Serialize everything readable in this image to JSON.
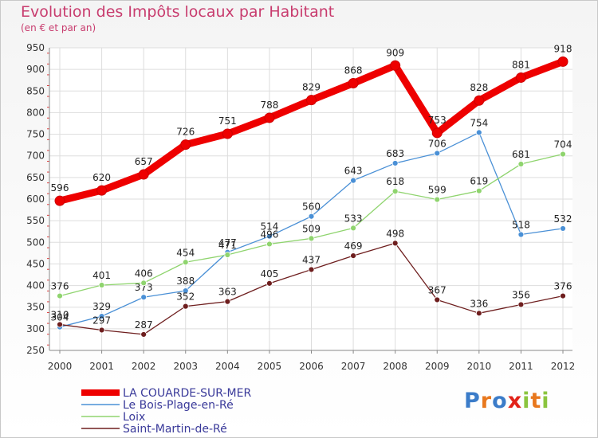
{
  "title": "Evolution des Impôts locaux par Habitant",
  "subtitle": "(en € et par an)",
  "brand": {
    "name": "Proxiti",
    "colors": [
      "#3b7cc9",
      "#e8781e",
      "#3b7cc9",
      "#e2231a",
      "#8bc53f",
      "#e8781e",
      "#8bc53f"
    ]
  },
  "chart_data": {
    "type": "line",
    "title": "Evolution des Impôts locaux par Habitant",
    "subtitle": "(en € et par an)",
    "xlabel": "",
    "ylabel": "",
    "ylim": [
      250,
      950
    ],
    "yticks": [
      250,
      300,
      350,
      400,
      450,
      500,
      550,
      600,
      650,
      700,
      750,
      800,
      850,
      900,
      950
    ],
    "categories": [
      "2000",
      "2001",
      "2002",
      "2003",
      "2004",
      "2005",
      "2006",
      "2007",
      "2008",
      "2009",
      "2010",
      "2011",
      "2012"
    ],
    "grid": true,
    "legend": "bottom-left",
    "series": [
      {
        "name": "LA COUARDE-SUR-MER",
        "color": "#ee0000",
        "emphasis": true,
        "values": [
          596,
          620,
          657,
          726,
          751,
          788,
          829,
          868,
          909,
          753,
          828,
          881,
          918
        ]
      },
      {
        "name": "Le Bois-Plage-en-Ré",
        "color": "#4a90d6",
        "emphasis": false,
        "values": [
          304,
          329,
          373,
          388,
          477,
          514,
          560,
          643,
          683,
          706,
          754,
          518,
          532
        ]
      },
      {
        "name": "Loix",
        "color": "#8fd46e",
        "emphasis": false,
        "values": [
          376,
          401,
          406,
          454,
          471,
          496,
          509,
          533,
          618,
          599,
          619,
          681,
          704
        ]
      },
      {
        "name": "Saint-Martin-de-Ré",
        "color": "#6e1e1e",
        "emphasis": false,
        "values": [
          310,
          297,
          287,
          352,
          363,
          405,
          437,
          469,
          498,
          367,
          336,
          356,
          376
        ]
      }
    ]
  }
}
